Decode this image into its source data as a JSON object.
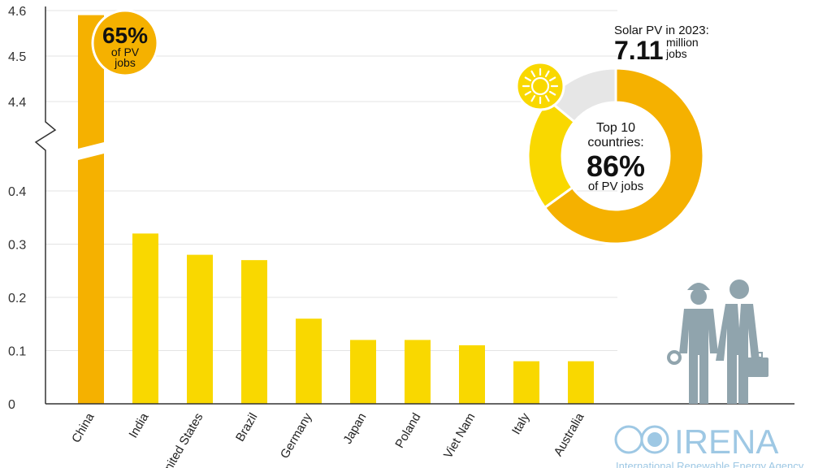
{
  "chart_data": {
    "type": "bar",
    "categories": [
      "China",
      "India",
      "United States",
      "Brazil",
      "Germany",
      "Japan",
      "Poland",
      "Viet Nam",
      "Italy",
      "Australia"
    ],
    "values": [
      4.59,
      0.32,
      0.28,
      0.27,
      0.16,
      0.12,
      0.12,
      0.11,
      0.08,
      0.08
    ],
    "lower_ticks": [
      "0",
      "0.1",
      "0.2",
      "0.3",
      "0.4"
    ],
    "upper_ticks": [
      "4.4",
      "4.5",
      "4.6"
    ],
    "axis_break": true,
    "colors": {
      "highlight": "#f5b100",
      "bars": "#f9d800",
      "grey": "#e6e6e6",
      "figures": "#90a4ad"
    }
  },
  "callout_china": {
    "value": "65%",
    "line1": "of PV",
    "line2": "jobs"
  },
  "headline": {
    "label": "Solar PV in 2023:",
    "value": "7.11",
    "unit1": "million",
    "unit2": "jobs"
  },
  "donut": {
    "center_line1": "Top 10",
    "center_line2": "countries:",
    "center_value": "86%",
    "center_line3": "of PV jobs",
    "segments": [
      {
        "share": 0.65,
        "color": "#f5b100"
      },
      {
        "share": 0.21,
        "color": "#f9d800"
      },
      {
        "share": 0.14,
        "color": "#e6e6e6"
      }
    ]
  },
  "logo": {
    "text": "IRENA",
    "tagline": "International Renewable Energy Agency"
  }
}
